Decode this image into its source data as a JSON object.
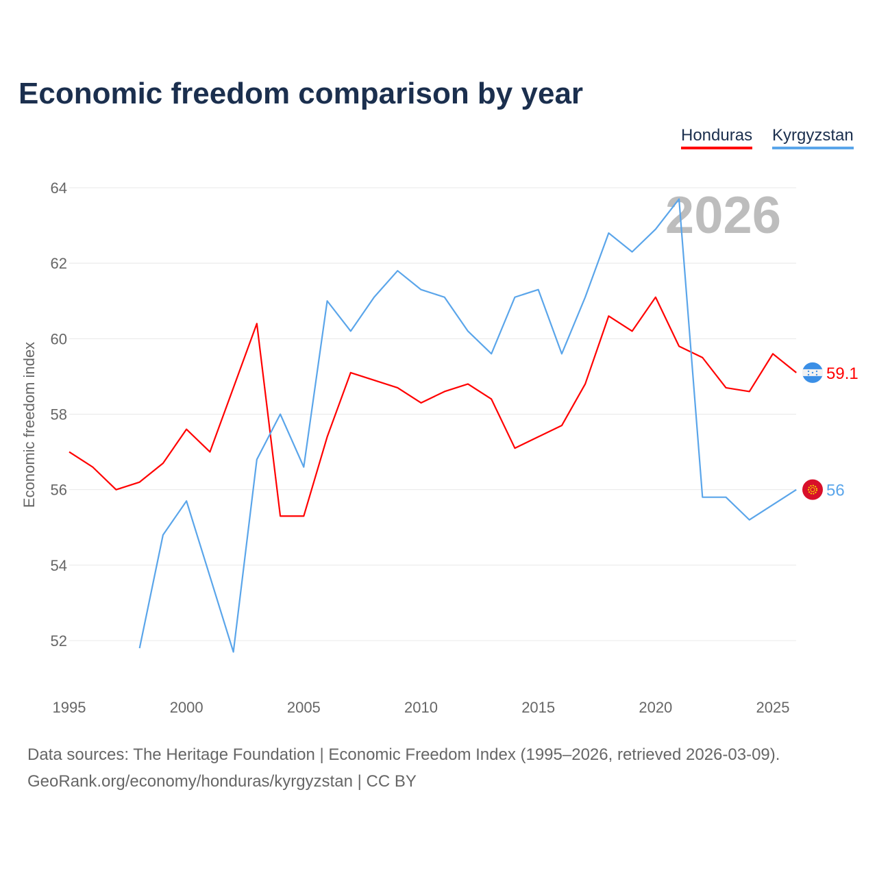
{
  "title": "Economic freedom comparison by year",
  "footer": {
    "line1": "Data sources: The Heritage Foundation | Economic Freedom Index (1995–2026, retrieved 2026-03-09).",
    "line2": "GeoRank.org/economy/honduras/kyrgyzstan | CC BY"
  },
  "chart_data": {
    "type": "line",
    "title": "Economic freedom comparison by year",
    "xlabel": "",
    "ylabel": "Economic freedom index",
    "year_watermark": "2026",
    "xlim": [
      1995,
      2026
    ],
    "ylim": [
      50.8,
      64.5
    ],
    "x_ticks": [
      "1995",
      "2000",
      "2005",
      "2010",
      "2015",
      "2020",
      "2025"
    ],
    "y_ticks": [
      "52",
      "54",
      "56",
      "58",
      "60",
      "62",
      "64"
    ],
    "grid": true,
    "legend_placement": "top-right",
    "series": [
      {
        "name": "Honduras",
        "color": "#ff0000",
        "end_label": "59.1",
        "flag": "honduras-flag",
        "x": [
          1995,
          1996,
          1997,
          1998,
          1999,
          2000,
          2001,
          2002,
          2003,
          2004,
          2005,
          2006,
          2007,
          2008,
          2009,
          2010,
          2011,
          2012,
          2013,
          2014,
          2015,
          2016,
          2017,
          2018,
          2019,
          2020,
          2021,
          2022,
          2023,
          2024,
          2025,
          2026
        ],
        "values": [
          57.0,
          56.6,
          56.0,
          56.2,
          56.7,
          57.6,
          57.0,
          58.7,
          60.4,
          55.3,
          55.3,
          57.4,
          59.1,
          58.9,
          58.7,
          58.3,
          58.6,
          58.8,
          58.4,
          57.1,
          57.4,
          57.7,
          58.8,
          60.6,
          60.2,
          61.1,
          59.8,
          59.5,
          58.7,
          58.6,
          59.6,
          59.1
        ]
      },
      {
        "name": "Kyrgyzstan",
        "color": "#5aa5ea",
        "end_label": "56",
        "flag": "kyrgyzstan-flag",
        "x": [
          1998,
          1999,
          2000,
          2001,
          2002,
          2003,
          2004,
          2005,
          2006,
          2007,
          2008,
          2009,
          2010,
          2011,
          2012,
          2013,
          2014,
          2015,
          2016,
          2017,
          2018,
          2019,
          2020,
          2021,
          2022,
          2023,
          2024,
          2025,
          2026
        ],
        "values": [
          51.8,
          54.8,
          55.7,
          53.7,
          51.7,
          56.8,
          58.0,
          56.6,
          61.0,
          60.2,
          61.1,
          61.8,
          61.3,
          61.1,
          60.2,
          59.6,
          61.1,
          61.3,
          59.6,
          61.1,
          62.8,
          62.3,
          62.9,
          63.7,
          55.8,
          55.8,
          55.2,
          55.6,
          56.0
        ]
      }
    ]
  }
}
